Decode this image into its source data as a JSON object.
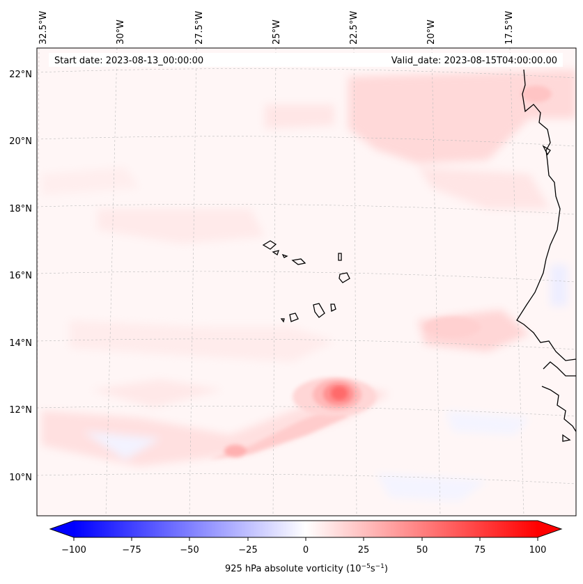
{
  "map": {
    "start_date": "Start date: 2023-08-13_00:00:00",
    "valid_date": "Valid_date: 2023-08-15T04:00:00.00",
    "lon_labels": [
      "32.5°W",
      "30°W",
      "27.5°W",
      "25°W",
      "22.5°W",
      "20°W",
      "17.5°W"
    ],
    "lat_labels": [
      "22°N",
      "20°N",
      "18°N",
      "16°N",
      "14°N",
      "12°N",
      "10°N"
    ]
  },
  "colorbar": {
    "label_main": "925 hPa absolute vorticity (10",
    "label_exp1": "−5",
    "label_mid": "s",
    "label_exp2": "−1",
    "label_end": ")",
    "ticks": [
      "−100",
      "−75",
      "−50",
      "−25",
      "0",
      "25",
      "50",
      "75",
      "100"
    ],
    "colors": {
      "neg": "#0000ff",
      "zero": "#ffffff",
      "pos": "#ff0000"
    }
  },
  "field": {
    "vortex_center": "12.4°N 23.4°W",
    "peak_value": 60
  }
}
